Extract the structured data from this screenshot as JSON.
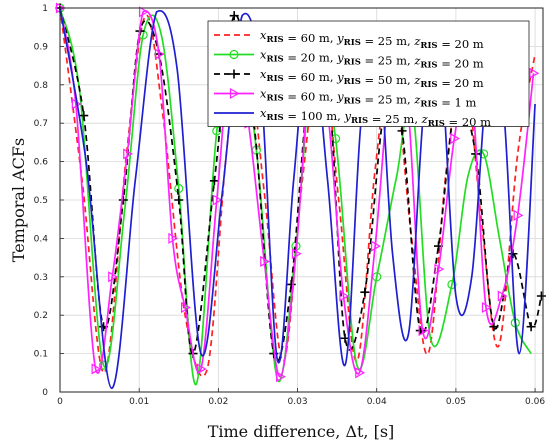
{
  "chart_data": {
    "type": "line",
    "xlabel": "Time difference, Δt, [s]",
    "ylabel": "Temporal ACFs",
    "xlim": [
      0,
      0.061
    ],
    "ylim": [
      0,
      1
    ],
    "xticks": [
      "0",
      "0.01",
      "0.02",
      "0.03",
      "0.04",
      "0.05",
      "0.06"
    ],
    "yticks": [
      "0",
      "0.1",
      "0.2",
      "0.3",
      "0.4",
      "0.5",
      "0.6",
      "0.7",
      "0.8",
      "0.9",
      "1"
    ],
    "grid": true,
    "legend_position": "top-right",
    "series": [
      {
        "name": "x_RIS = 60 m, y_RIS = 25 m, z_RIS = 20 m",
        "legend": {
          "x": "60 m",
          "y": "25 m",
          "z": "20 m"
        },
        "color": "#ff2020",
        "style": "dashed",
        "marker": "none",
        "x": [
          0,
          0.0028,
          0.0056,
          0.0084,
          0.0108,
          0.013,
          0.0158,
          0.0186,
          0.021,
          0.0232,
          0.0258,
          0.0282,
          0.0306,
          0.033,
          0.0352,
          0.0375,
          0.0398,
          0.042,
          0.0443,
          0.0465,
          0.0488,
          0.051,
          0.0532,
          0.0554,
          0.0578,
          0.06
        ],
        "y": [
          1.0,
          0.55,
          0.05,
          0.62,
          0.98,
          0.72,
          0.2,
          0.06,
          0.62,
          0.95,
          0.52,
          0.08,
          0.55,
          0.9,
          0.5,
          0.08,
          0.58,
          0.86,
          0.42,
          0.1,
          0.58,
          0.86,
          0.45,
          0.12,
          0.62,
          0.88
        ]
      },
      {
        "name": "x_RIS = 20 m, y_RIS = 25 m, z_RIS = 20 m",
        "legend": {
          "x": "20 m",
          "y": "25 m",
          "z": "20 m"
        },
        "color": "#22dd22",
        "style": "solid",
        "marker": "circle",
        "x": [
          0,
          0.0025,
          0.0055,
          0.0082,
          0.0105,
          0.0128,
          0.015,
          0.0172,
          0.0198,
          0.0222,
          0.0248,
          0.0275,
          0.0298,
          0.0322,
          0.0348,
          0.0375,
          0.04,
          0.0425,
          0.0445,
          0.0468,
          0.0495,
          0.0515,
          0.0535,
          0.0555,
          0.0575,
          0.0595
        ],
        "y": [
          1.0,
          0.78,
          0.07,
          0.48,
          0.93,
          0.93,
          0.53,
          0.02,
          0.68,
          0.96,
          0.63,
          0.03,
          0.38,
          0.9,
          0.66,
          0.07,
          0.3,
          0.56,
          0.74,
          0.14,
          0.28,
          0.56,
          0.62,
          0.4,
          0.18,
          0.1
        ]
      },
      {
        "name": "x_RIS = 60 m, y_RIS = 50 m, z_RIS = 20 m",
        "legend": {
          "x": "60 m",
          "y": "50 m",
          "z": "20 m"
        },
        "color": "#000000",
        "style": "dashed",
        "marker": "plus",
        "x": [
          0,
          0.003,
          0.0055,
          0.008,
          0.0101,
          0.0125,
          0.015,
          0.0168,
          0.0195,
          0.022,
          0.0245,
          0.027,
          0.0292,
          0.0316,
          0.034,
          0.036,
          0.0385,
          0.041,
          0.0432,
          0.0455,
          0.0478,
          0.05,
          0.0525,
          0.0548,
          0.0572,
          0.0595,
          0.0608
        ],
        "y": [
          1.0,
          0.72,
          0.17,
          0.5,
          0.94,
          0.88,
          0.5,
          0.1,
          0.55,
          0.98,
          0.7,
          0.1,
          0.28,
          0.82,
          0.76,
          0.14,
          0.26,
          0.74,
          0.68,
          0.16,
          0.38,
          0.75,
          0.62,
          0.17,
          0.36,
          0.17,
          0.25
        ]
      },
      {
        "name": "x_RIS = 60 m, y_RIS = 25 m, z_RIS = 1 m",
        "legend": {
          "x": "60 m",
          "y": "25 m",
          "z": "1 m"
        },
        "color": "#ff22ff",
        "style": "solid",
        "marker": "triangle-right",
        "x": [
          0,
          0.002,
          0.0045,
          0.0066,
          0.0085,
          0.0105,
          0.0125,
          0.0142,
          0.0158,
          0.0178,
          0.0198,
          0.0218,
          0.0238,
          0.0258,
          0.0278,
          0.0298,
          0.0318,
          0.0338,
          0.0358,
          0.0378,
          0.0398,
          0.0418,
          0.0438,
          0.0458,
          0.0478,
          0.0498,
          0.0518,
          0.0538,
          0.0558,
          0.0578,
          0.0598
        ],
        "y": [
          1.0,
          0.75,
          0.06,
          0.3,
          0.62,
          0.99,
          0.88,
          0.4,
          0.22,
          0.06,
          0.5,
          0.92,
          0.7,
          0.34,
          0.04,
          0.36,
          0.88,
          0.73,
          0.25,
          0.05,
          0.38,
          0.82,
          0.78,
          0.16,
          0.32,
          0.66,
          0.83,
          0.22,
          0.25,
          0.46,
          0.83
        ]
      },
      {
        "name": "x_RIS = 100 m, y_RIS = 25 m, z_RIS = 20 m",
        "legend": {
          "x": "100 m",
          "y": "25 m",
          "z": "20 m"
        },
        "color": "#1f1fd2",
        "style": "solid",
        "marker": "none",
        "x": [
          0,
          0.0033,
          0.0065,
          0.0095,
          0.0122,
          0.0148,
          0.0178,
          0.0205,
          0.023,
          0.0253,
          0.0275,
          0.0295,
          0.0316,
          0.0338,
          0.036,
          0.038,
          0.04,
          0.042,
          0.044,
          0.046,
          0.048,
          0.05,
          0.052,
          0.054,
          0.056,
          0.058,
          0.06
        ],
        "y": [
          1.0,
          0.6,
          0.01,
          0.55,
          0.99,
          0.84,
          0.1,
          0.52,
          0.98,
          0.82,
          0.08,
          0.55,
          0.95,
          0.55,
          0.07,
          0.7,
          0.94,
          0.36,
          0.15,
          0.75,
          0.87,
          0.25,
          0.3,
          0.81,
          0.74,
          0.1,
          0.75
        ]
      }
    ]
  }
}
